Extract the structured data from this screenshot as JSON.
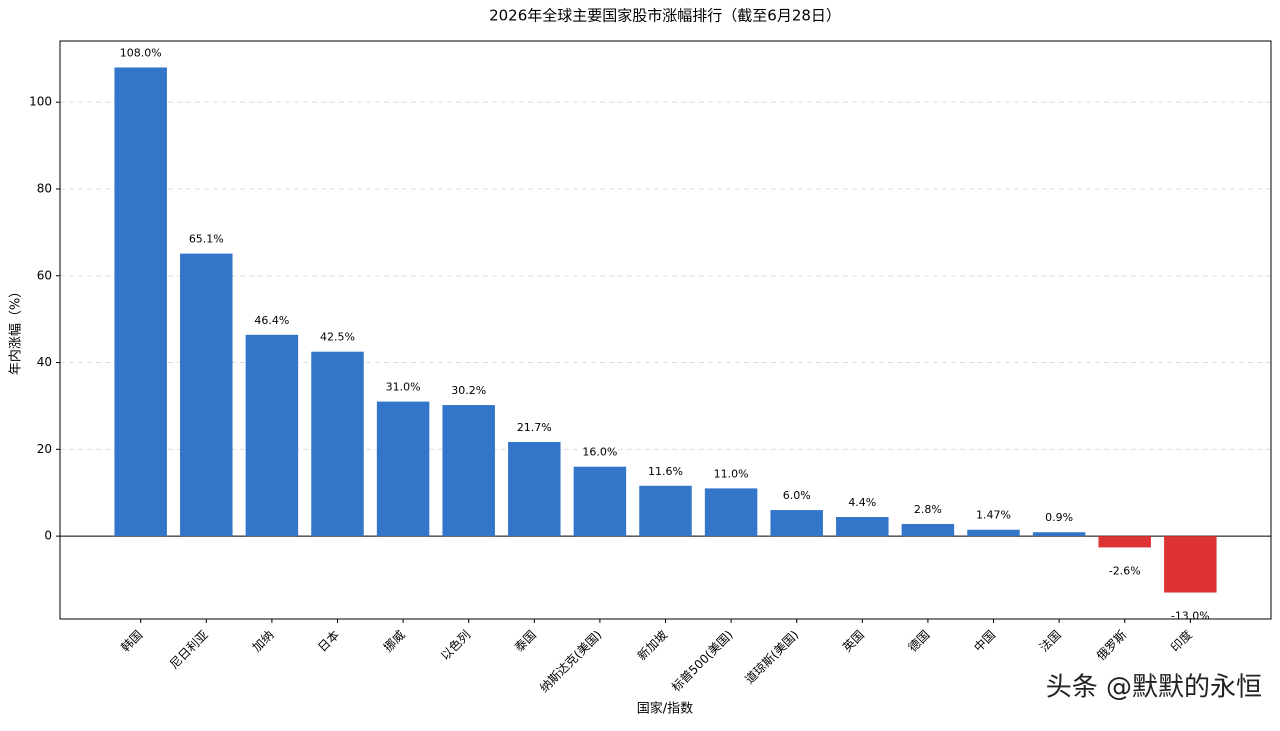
{
  "chart_data": {
    "type": "bar",
    "title": "2026年全球主要国家股市涨幅排行（截至6月28日）",
    "x_label": "国家/指数",
    "y_label": "年内涨幅（%）",
    "categories": [
      "韩国",
      "尼日利亚",
      "加纳",
      "日本",
      "挪威",
      "以色列",
      "泰国",
      "纳斯达克(美国)",
      "新加坡",
      "标普500(美国)",
      "道琼斯(美国)",
      "英国",
      "德国",
      "中国",
      "法国",
      "俄罗斯",
      "印度"
    ],
    "values": [
      108.0,
      65.1,
      46.4,
      42.5,
      31.0,
      30.2,
      21.7,
      16.0,
      11.6,
      11.0,
      6.0,
      4.4,
      2.8,
      1.47,
      0.9,
      -2.6,
      -13.0
    ],
    "value_labels": [
      "108.0%",
      "65.1%",
      "46.4%",
      "42.5%",
      "31.0%",
      "30.2%",
      "21.7%",
      "16.0%",
      "11.6%",
      "11.0%",
      "6.0%",
      "4.4%",
      "2.8%",
      "1.47%",
      "0.9%",
      "-2.6%",
      "-13.0%"
    ],
    "color": "#3375c8",
    "negative_color": "#dd3333",
    "ylim": [
      -19.1,
      114.1
    ],
    "yticks": [
      0,
      20,
      40,
      60,
      80,
      100
    ],
    "grid": true,
    "watermark": "头条 @默默的永恒"
  }
}
